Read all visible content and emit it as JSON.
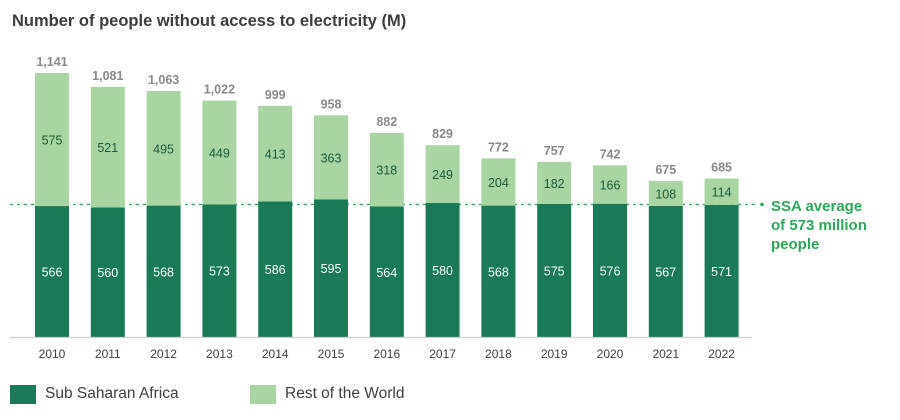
{
  "chart_data": {
    "type": "bar",
    "stacked": true,
    "title": "Number of people without access to electricity (M)",
    "categories": [
      "2010",
      "2011",
      "2012",
      "2013",
      "2014",
      "2015",
      "2016",
      "2017",
      "2018",
      "2019",
      "2020",
      "2021",
      "2022"
    ],
    "series": [
      {
        "name": "Sub Saharan Africa",
        "color": "#1a7a56",
        "values": [
          566,
          560,
          568,
          573,
          586,
          595,
          564,
          580,
          568,
          575,
          576,
          567,
          571
        ]
      },
      {
        "name": "Rest of the World",
        "color": "#a8d5a2",
        "values": [
          575,
          521,
          495,
          449,
          413,
          363,
          318,
          249,
          204,
          182,
          166,
          108,
          114
        ]
      }
    ],
    "totals": [
      "1,141",
      "1,081",
      "1,063",
      "1,022",
      "999",
      "958",
      "882",
      "829",
      "772",
      "757",
      "742",
      "675",
      "685"
    ],
    "reference_line": {
      "value": 573,
      "label": "SSA average of 573 million people",
      "style": "dashed",
      "color": "#2ea85a"
    },
    "legend_placement": "bottom-left",
    "grid": false
  }
}
